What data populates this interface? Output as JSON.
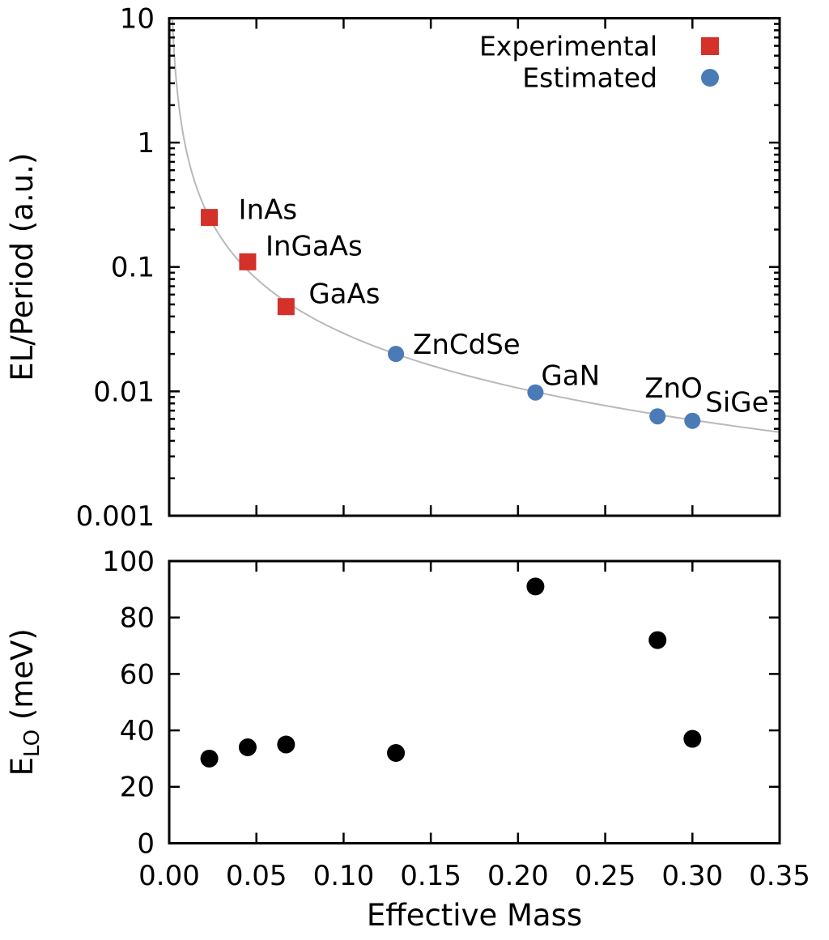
{
  "figure": {
    "background": "#ffffff",
    "xlabel": "Effective Mass"
  },
  "chart_data": [
    {
      "id": "el-period-panel",
      "type": "scatter",
      "title": "",
      "ylabel": "EL/Period (a.u.)",
      "yscale": "log",
      "ylim": [
        0.001,
        10
      ],
      "xlim": [
        0.0,
        0.35
      ],
      "grid": false,
      "ytick_values": [
        0.001,
        0.01,
        0.1,
        1,
        10
      ],
      "ytick_labels": [
        "0.001",
        "0.01",
        "0.1",
        "1",
        "10"
      ],
      "xtick_values": [
        0.05,
        0.1,
        0.15,
        0.2,
        0.25,
        0.3
      ],
      "xtick_labels_shown": false,
      "legend": {
        "position": "top-right",
        "entries": [
          {
            "label": "Experimental",
            "marker": "square",
            "color": "#d3312a"
          },
          {
            "label": "Estimated",
            "marker": "circle",
            "color": "#4a7bb7"
          }
        ]
      },
      "fit_curve": {
        "type": "power-law",
        "coefficient": 0.001015,
        "exponent": -1.46,
        "color": "#b9b9b9"
      },
      "series": [
        {
          "name": "Experimental",
          "marker": "square",
          "color": "#d3312a",
          "points": [
            {
              "label": "InAs",
              "x": 0.023,
              "y": 0.25
            },
            {
              "label": "InGaAs",
              "x": 0.045,
              "y": 0.11
            },
            {
              "label": "GaAs",
              "x": 0.067,
              "y": 0.048
            }
          ]
        },
        {
          "name": "Estimated",
          "marker": "circle",
          "color": "#4a7bb7",
          "points": [
            {
              "label": "ZnCdSe",
              "x": 0.13,
              "y": 0.02
            },
            {
              "label": "GaN",
              "x": 0.21,
              "y": 0.0098
            },
            {
              "label": "ZnO",
              "x": 0.28,
              "y": 0.0063
            },
            {
              "label": "SiGe",
              "x": 0.3,
              "y": 0.0058
            }
          ]
        }
      ]
    },
    {
      "id": "elo-panel",
      "type": "scatter",
      "title": "",
      "xlabel": "Effective Mass",
      "ylabel": {
        "prefix": "E",
        "sub": "LO",
        "suffix": " (meV)"
      },
      "ylim": [
        0,
        100
      ],
      "xlim": [
        0.0,
        0.35
      ],
      "grid": false,
      "ytick_values": [
        0,
        20,
        40,
        60,
        80,
        100
      ],
      "ytick_labels": [
        "0",
        "20",
        "40",
        "60",
        "80",
        "100"
      ],
      "xtick_values": [
        0.0,
        0.05,
        0.1,
        0.15,
        0.2,
        0.25,
        0.3,
        0.35
      ],
      "xtick_labels": [
        "0.00",
        "0.05",
        "0.10",
        "0.15",
        "0.20",
        "0.25",
        "0.30",
        "0.35"
      ],
      "series": [
        {
          "name": "E_LO",
          "marker": "circle",
          "color": "#000000",
          "points": [
            {
              "label": "InAs",
              "x": 0.023,
              "y": 30
            },
            {
              "label": "InGaAs",
              "x": 0.045,
              "y": 34
            },
            {
              "label": "GaAs",
              "x": 0.067,
              "y": 35
            },
            {
              "label": "ZnCdSe",
              "x": 0.13,
              "y": 32
            },
            {
              "label": "GaN",
              "x": 0.21,
              "y": 91
            },
            {
              "label": "ZnO",
              "x": 0.28,
              "y": 72
            },
            {
              "label": "SiGe",
              "x": 0.3,
              "y": 37
            }
          ]
        }
      ]
    }
  ]
}
